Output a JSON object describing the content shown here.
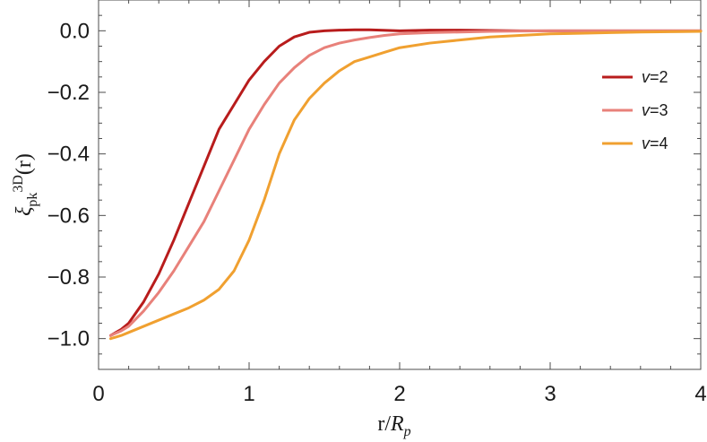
{
  "chart_data": {
    "type": "line",
    "xlabel": "r/R_p",
    "ylabel": "ξ_pk^3D(r)",
    "xlim": [
      0,
      4
    ],
    "ylim": [
      -1.1,
      0.1
    ],
    "x_ticks": [
      "0",
      "1",
      "2",
      "3",
      "4"
    ],
    "y_ticks": [
      "0.0",
      "−0.2",
      "−0.4",
      "−0.6",
      "−0.8",
      "−1.0"
    ],
    "grid": false,
    "legend_placement": "right",
    "series": [
      {
        "name": "v=2",
        "color": "#b81c1c",
        "x": [
          0.08,
          0.15,
          0.2,
          0.3,
          0.4,
          0.5,
          0.6,
          0.7,
          0.8,
          0.85,
          0.9,
          1.0,
          1.1,
          1.2,
          1.3,
          1.4,
          1.5,
          1.6,
          1.7,
          1.8,
          2.0,
          2.2,
          2.4,
          2.6,
          2.8,
          3.0,
          3.2,
          3.4,
          3.6,
          3.8,
          4.0
        ],
        "y": [
          -0.99,
          -0.97,
          -0.95,
          -0.88,
          -0.79,
          -0.68,
          -0.56,
          -0.44,
          -0.32,
          -0.28,
          -0.24,
          -0.16,
          -0.1,
          -0.05,
          -0.02,
          -0.005,
          0.0,
          0.002,
          0.003,
          0.003,
          0.0,
          0.002,
          0.002,
          0.001,
          0.0,
          0.0,
          0.0,
          0.0,
          0.0,
          0.0,
          0.0
        ]
      },
      {
        "name": "v=3",
        "color": "#e8817a",
        "x": [
          0.08,
          0.15,
          0.2,
          0.3,
          0.4,
          0.5,
          0.6,
          0.7,
          0.8,
          0.9,
          1.0,
          1.1,
          1.2,
          1.3,
          1.4,
          1.5,
          1.6,
          1.7,
          1.8,
          1.9,
          2.0,
          2.2,
          2.4,
          2.6,
          2.8,
          3.0,
          3.2,
          3.4,
          3.6,
          3.8,
          4.0
        ],
        "y": [
          -0.99,
          -0.975,
          -0.96,
          -0.91,
          -0.85,
          -0.78,
          -0.7,
          -0.62,
          -0.52,
          -0.42,
          -0.32,
          -0.24,
          -0.17,
          -0.12,
          -0.08,
          -0.055,
          -0.04,
          -0.03,
          -0.022,
          -0.015,
          -0.01,
          -0.006,
          -0.004,
          -0.002,
          -0.001,
          0.0,
          0.0,
          0.0,
          0.0,
          0.0,
          0.0
        ]
      },
      {
        "name": "v=4",
        "color": "#f0a030",
        "x": [
          0.08,
          0.15,
          0.2,
          0.3,
          0.4,
          0.5,
          0.6,
          0.7,
          0.8,
          0.9,
          1.0,
          1.1,
          1.2,
          1.3,
          1.4,
          1.5,
          1.6,
          1.7,
          1.8,
          1.9,
          2.0,
          2.2,
          2.4,
          2.6,
          2.8,
          3.0,
          3.2,
          3.4,
          3.6,
          3.8,
          4.0
        ],
        "y": [
          -1.0,
          -0.99,
          -0.98,
          -0.96,
          -0.94,
          -0.92,
          -0.9,
          -0.875,
          -0.84,
          -0.78,
          -0.68,
          -0.55,
          -0.4,
          -0.29,
          -0.22,
          -0.17,
          -0.13,
          -0.1,
          -0.085,
          -0.07,
          -0.055,
          -0.04,
          -0.03,
          -0.02,
          -0.015,
          -0.01,
          -0.008,
          -0.006,
          -0.004,
          -0.003,
          -0.002
        ]
      }
    ]
  }
}
